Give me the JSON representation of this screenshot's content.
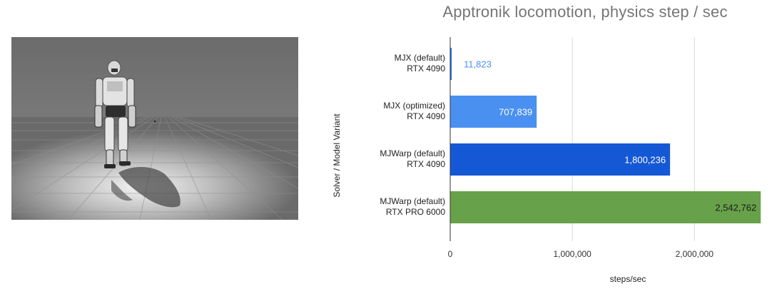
{
  "chart_data": {
    "type": "bar",
    "orientation": "horizontal",
    "title": "Apptronik locomotion, physics step / sec",
    "xlabel": "steps/sec",
    "ylabel": "Solver / Model Variant",
    "categories": [
      [
        "MJX (default)",
        "RTX 4090"
      ],
      [
        "MJX (optimized)",
        "RTX 4090"
      ],
      [
        "MJWarp (default)",
        "RTX 4090"
      ],
      [
        "MJWarp (default)",
        "RTX PRO 6000"
      ]
    ],
    "values": [
      11823,
      707839,
      1800236,
      2542762
    ],
    "value_labels": [
      "11,823",
      "707,839",
      "1,800,236",
      "2,542,762"
    ],
    "bar_colors": [
      "#1a73e8",
      "#4a90f0",
      "#1558d6",
      "#67a24a"
    ],
    "label_colors": [
      "#4a90f0",
      "#ffffff",
      "#ffffff",
      "#1b1b1b"
    ],
    "xlim": [
      0,
      2600000
    ],
    "x_ticks": [
      0,
      1000000,
      2000000
    ],
    "x_tick_labels": [
      "0",
      "1,000,000",
      "2,000,000"
    ],
    "grid": true,
    "legend": "none"
  }
}
